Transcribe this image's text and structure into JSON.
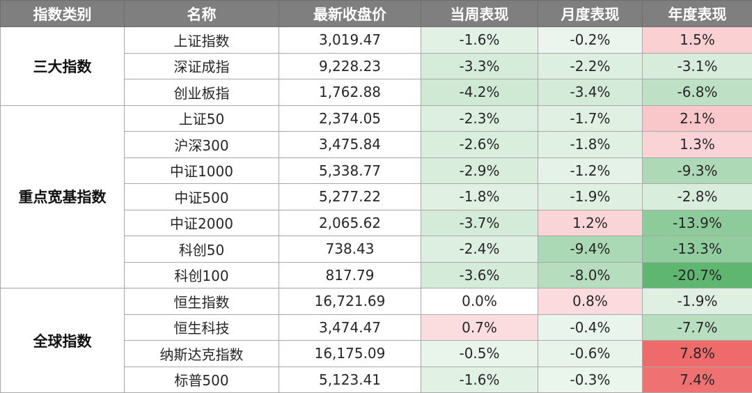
{
  "headers": [
    "指数类别",
    "名称",
    "最新收盘价",
    "当周表现",
    "月度表现",
    "年度表现"
  ],
  "colors": {
    "header_bg": "#7f7f7f",
    "positive": "#e8a2aa",
    "negative": "#5fb671",
    "positive_strong": "#ef6b6b"
  },
  "groups": [
    {
      "category": "三大指数",
      "rows": [
        {
          "name": "上证指数",
          "close": "3,019.47",
          "week": "-1.6%",
          "month": "-0.2%",
          "year": "1.5%"
        },
        {
          "name": "深证成指",
          "close": "9,228.23",
          "week": "-3.3%",
          "month": "-2.2%",
          "year": "-3.1%"
        },
        {
          "name": "创业板指",
          "close": "1,762.88",
          "week": "-4.2%",
          "month": "-3.4%",
          "year": "-6.8%"
        }
      ]
    },
    {
      "category": "重点宽基指数",
      "rows": [
        {
          "name": "上证50",
          "close": "2,374.05",
          "week": "-2.3%",
          "month": "-1.7%",
          "year": "2.1%"
        },
        {
          "name": "沪深300",
          "close": "3,475.84",
          "week": "-2.6%",
          "month": "-1.8%",
          "year": "1.3%"
        },
        {
          "name": "中证1000",
          "close": "5,338.77",
          "week": "-2.9%",
          "month": "-1.2%",
          "year": "-9.3%"
        },
        {
          "name": "中证500",
          "close": "5,277.22",
          "week": "-1.8%",
          "month": "-1.9%",
          "year": "-2.8%"
        },
        {
          "name": "中证2000",
          "close": "2,065.62",
          "week": "-3.7%",
          "month": "1.2%",
          "year": "-13.9%"
        },
        {
          "name": "科创50",
          "close": "738.43",
          "week": "-2.4%",
          "month": "-9.4%",
          "year": "-13.3%"
        },
        {
          "name": "科创100",
          "close": "817.79",
          "week": "-3.6%",
          "month": "-8.0%",
          "year": "-20.7%"
        }
      ]
    },
    {
      "category": "全球指数",
      "rows": [
        {
          "name": "恒生指数",
          "close": "16,721.69",
          "week": "0.0%",
          "month": "0.8%",
          "year": "-1.9%"
        },
        {
          "name": "恒生科技",
          "close": "3,474.47",
          "week": "0.7%",
          "month": "-0.4%",
          "year": "-7.7%"
        },
        {
          "name": "纳斯达克指数",
          "close": "16,175.09",
          "week": "-0.5%",
          "month": "-0.6%",
          "year": "7.8%"
        },
        {
          "name": "标普500",
          "close": "5,123.41",
          "week": "-1.6%",
          "month": "-0.3%",
          "year": "7.4%"
        }
      ]
    }
  ]
}
